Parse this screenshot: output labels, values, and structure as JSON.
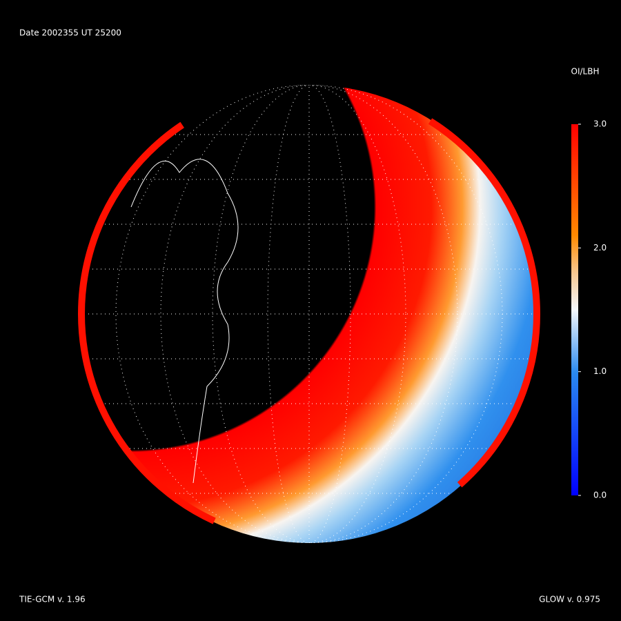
{
  "header": {
    "date": "Date 2002355  UT 25200"
  },
  "colorbar": {
    "label": "OI/LBH",
    "lim": [
      0,
      3
    ],
    "ticks": [
      {
        "value": 3,
        "label": "3.0"
      },
      {
        "value": 2,
        "label": "2.0"
      },
      {
        "value": 1,
        "label": "1.0"
      },
      {
        "value": 0,
        "label": "0.0"
      }
    ]
  },
  "footer": {
    "left": "TIE-GCM v. 1.96",
    "right": "GLOW v. 0.975"
  }
}
